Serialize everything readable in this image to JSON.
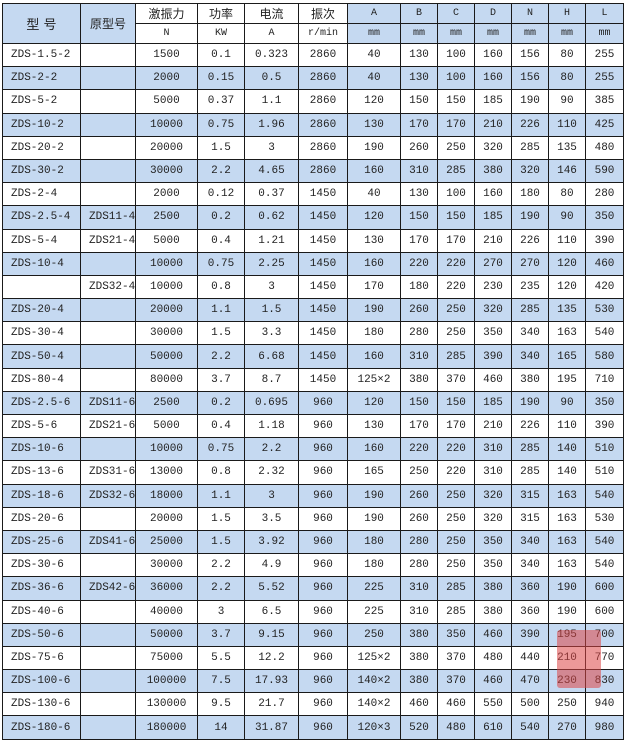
{
  "header": {
    "model": "型 号",
    "old_model": "原型号",
    "force": "激振力",
    "power": "功率",
    "current": "电流",
    "frequency": "振次",
    "dims": [
      "A",
      "B",
      "C",
      "D",
      "N",
      "H",
      "L"
    ],
    "units": {
      "force": "N",
      "power": "KW",
      "current": "A",
      "frequency": "r/min",
      "dims": [
        "mm",
        "mm",
        "mm",
        "mm",
        "mm",
        "mm",
        "mm"
      ]
    }
  },
  "colors": {
    "band": "#c5d9f1",
    "stamp": "#dc4646"
  },
  "rows": [
    [
      "ZDS-1.5-2",
      "",
      "1500",
      "0.1",
      "0.323",
      "2860",
      "40",
      "130",
      "100",
      "160",
      "156",
      "80",
      "255"
    ],
    [
      "ZDS-2-2",
      "",
      "2000",
      "0.15",
      "0.5",
      "2860",
      "40",
      "130",
      "100",
      "160",
      "156",
      "80",
      "255"
    ],
    [
      "ZDS-5-2",
      "",
      "5000",
      "0.37",
      "1.1",
      "2860",
      "120",
      "150",
      "150",
      "185",
      "190",
      "90",
      "385"
    ],
    [
      "ZDS-10-2",
      "",
      "10000",
      "0.75",
      "1.96",
      "2860",
      "130",
      "170",
      "170",
      "210",
      "226",
      "110",
      "425"
    ],
    [
      "ZDS-20-2",
      "",
      "20000",
      "1.5",
      "3",
      "2860",
      "190",
      "260",
      "250",
      "320",
      "285",
      "135",
      "480"
    ],
    [
      "ZDS-30-2",
      "",
      "30000",
      "2.2",
      "4.65",
      "2860",
      "160",
      "310",
      "285",
      "380",
      "320",
      "146",
      "590"
    ],
    [
      "ZDS-2-4",
      "",
      "2000",
      "0.12",
      "0.37",
      "1450",
      "40",
      "130",
      "100",
      "160",
      "180",
      "80",
      "280"
    ],
    [
      "ZDS-2.5-4",
      "ZDS11-4",
      "2500",
      "0.2",
      "0.62",
      "1450",
      "120",
      "150",
      "150",
      "185",
      "190",
      "90",
      "350"
    ],
    [
      "ZDS-5-4",
      "ZDS21-4",
      "5000",
      "0.4",
      "1.21",
      "1450",
      "130",
      "170",
      "170",
      "210",
      "226",
      "110",
      "390"
    ],
    [
      "ZDS-10-4",
      "",
      "10000",
      "0.75",
      "2.25",
      "1450",
      "160",
      "220",
      "220",
      "270",
      "270",
      "120",
      "460"
    ],
    [
      "",
      "ZDS32-4",
      "10000",
      "0.8",
      "3",
      "1450",
      "170",
      "180",
      "220",
      "230",
      "235",
      "120",
      "420"
    ],
    [
      "ZDS-20-4",
      "",
      "20000",
      "1.1",
      "1.5",
      "1450",
      "190",
      "260",
      "250",
      "320",
      "285",
      "135",
      "530"
    ],
    [
      "ZDS-30-4",
      "",
      "30000",
      "1.5",
      "3.3",
      "1450",
      "180",
      "280",
      "250",
      "350",
      "340",
      "163",
      "540"
    ],
    [
      "ZDS-50-4",
      "",
      "50000",
      "2.2",
      "6.68",
      "1450",
      "160",
      "310",
      "285",
      "390",
      "340",
      "165",
      "580"
    ],
    [
      "ZDS-80-4",
      "",
      "80000",
      "3.7",
      "8.7",
      "1450",
      "125×2",
      "380",
      "370",
      "460",
      "380",
      "195",
      "710"
    ],
    [
      "ZDS-2.5-6",
      "ZDS11-6",
      "2500",
      "0.2",
      "0.695",
      "960",
      "120",
      "150",
      "150",
      "185",
      "190",
      "90",
      "350"
    ],
    [
      "ZDS-5-6",
      "ZDS21-6",
      "5000",
      "0.4",
      "1.18",
      "960",
      "130",
      "170",
      "170",
      "210",
      "226",
      "110",
      "390"
    ],
    [
      "ZDS-10-6",
      "",
      "10000",
      "0.75",
      "2.2",
      "960",
      "160",
      "220",
      "220",
      "310",
      "285",
      "140",
      "510"
    ],
    [
      "ZDS-13-6",
      "ZDS31-6",
      "13000",
      "0.8",
      "2.32",
      "960",
      "165",
      "250",
      "220",
      "310",
      "285",
      "140",
      "510"
    ],
    [
      "ZDS-18-6",
      "ZDS32-6",
      "18000",
      "1.1",
      "3",
      "960",
      "190",
      "260",
      "250",
      "320",
      "315",
      "163",
      "540"
    ],
    [
      "ZDS-20-6",
      "",
      "20000",
      "1.5",
      "3.5",
      "960",
      "190",
      "260",
      "250",
      "320",
      "315",
      "163",
      "530"
    ],
    [
      "ZDS-25-6",
      "ZDS41-6",
      "25000",
      "1.5",
      "3.92",
      "960",
      "180",
      "280",
      "250",
      "350",
      "340",
      "163",
      "540"
    ],
    [
      "ZDS-30-6",
      "",
      "30000",
      "2.2",
      "4.9",
      "960",
      "180",
      "280",
      "250",
      "350",
      "340",
      "163",
      "540"
    ],
    [
      "ZDS-36-6",
      "ZDS42-6",
      "36000",
      "2.2",
      "5.52",
      "960",
      "225",
      "310",
      "285",
      "380",
      "360",
      "190",
      "600"
    ],
    [
      "ZDS-40-6",
      "",
      "40000",
      "3",
      "6.5",
      "960",
      "225",
      "310",
      "285",
      "380",
      "360",
      "190",
      "600"
    ],
    [
      "ZDS-50-6",
      "",
      "50000",
      "3.7",
      "9.15",
      "960",
      "250",
      "380",
      "350",
      "460",
      "390",
      "195",
      "700"
    ],
    [
      "ZDS-75-6",
      "",
      "75000",
      "5.5",
      "12.2",
      "960",
      "125×2",
      "380",
      "370",
      "480",
      "440",
      "210",
      "770"
    ],
    [
      "ZDS-100-6",
      "",
      "100000",
      "7.5",
      "17.93",
      "960",
      "140×2",
      "380",
      "370",
      "460",
      "470",
      "230",
      "830"
    ],
    [
      "ZDS-130-6",
      "",
      "130000",
      "9.5",
      "21.7",
      "960",
      "140×2",
      "460",
      "460",
      "550",
      "500",
      "250",
      "940"
    ],
    [
      "ZDS-180-6",
      "",
      "180000",
      "14",
      "31.87",
      "960",
      "120×3",
      "520",
      "480",
      "610",
      "540",
      "270",
      "980"
    ]
  ]
}
